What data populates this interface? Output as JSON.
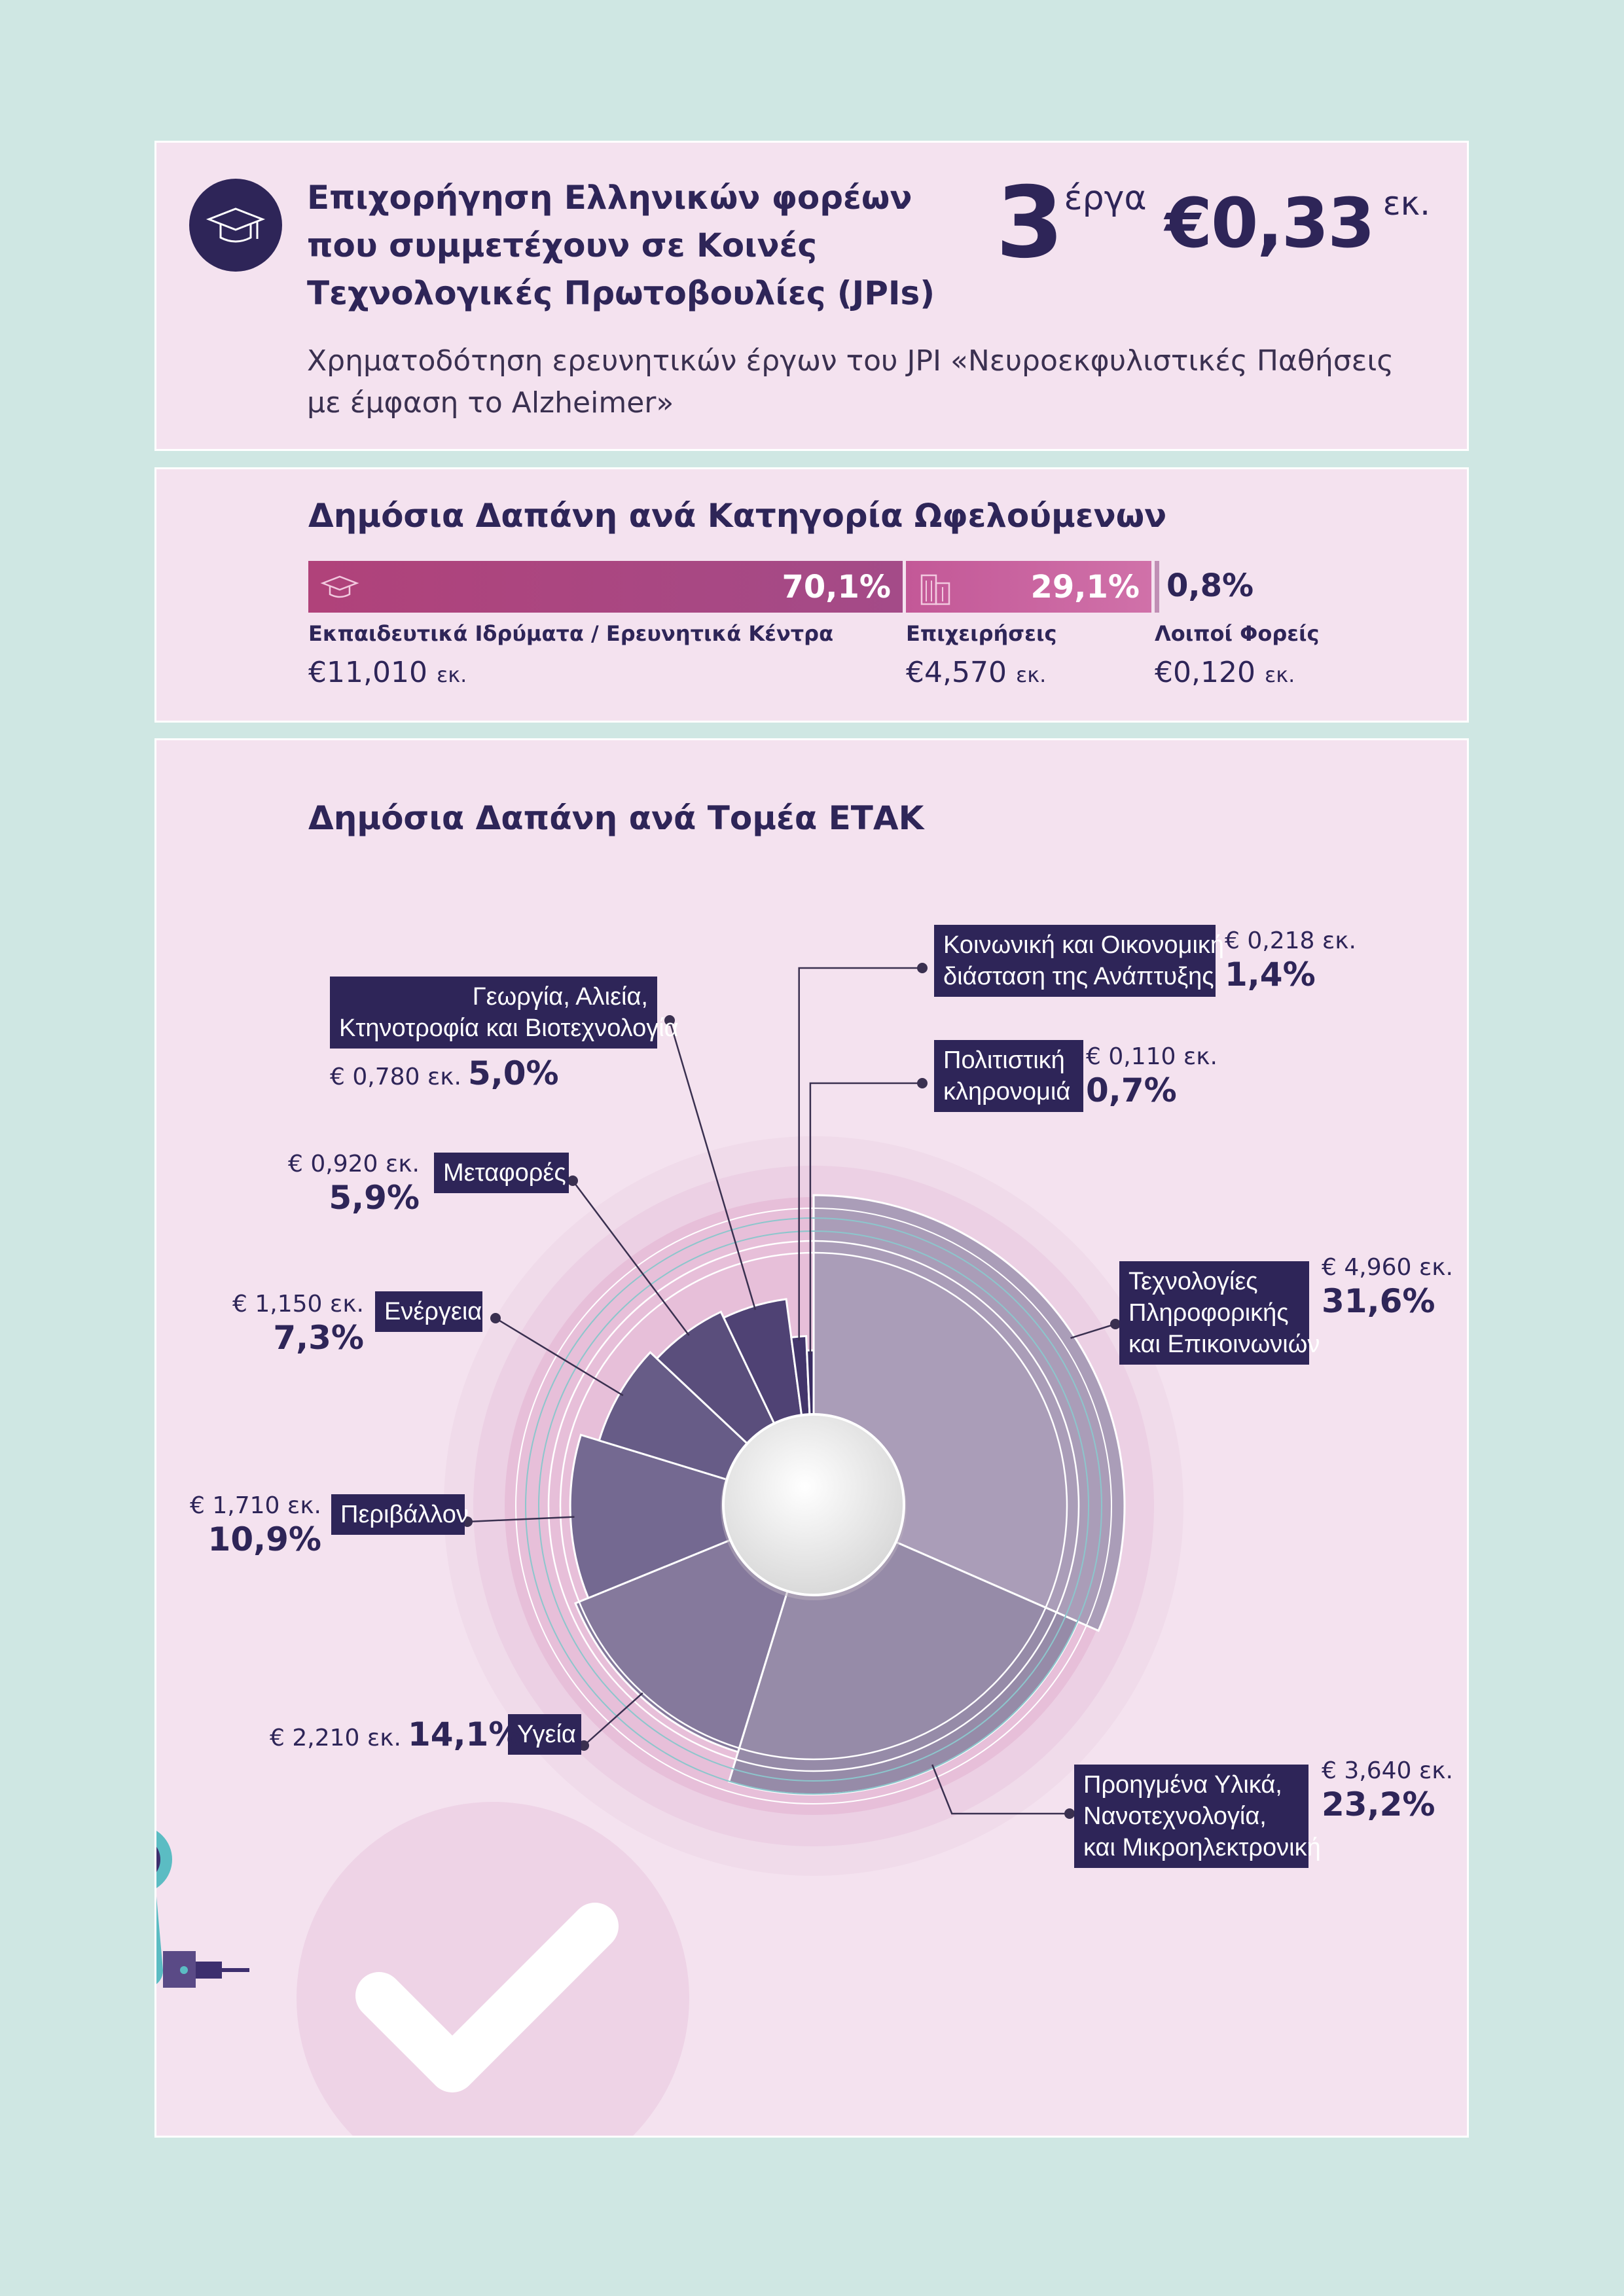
{
  "header": {
    "title_lines": [
      "Επιχορήγηση Ελληνικών φορέων",
      "που συμμετέχουν σε Κοινές",
      "Τεχνολογικές Πρωτοβουλίες (JPIs)"
    ],
    "projects_count": "3",
    "projects_label": "έργα",
    "amount": "€0,33",
    "amount_unit": "εκ.",
    "description_lines": [
      "Χρηματοδότηση ερευνητικών έργων του JPI «Νευροεκφυλιστικές Παθήσεις",
      "με έμφαση το Alzheimer»"
    ],
    "icon": "graduation-cap-icon"
  },
  "beneficiaries": {
    "title": "Δημόσια Δαπάνη ανά Κατηγορία Ωφελούμενων",
    "categories": [
      {
        "label": "Εκπαιδευτικά Ιδρύματα / Ερευνητικά Κέντρα",
        "pct": "70,1%",
        "share": 70.1,
        "value": "€11,010",
        "unit": "εκ.",
        "icon": "graduation-cap-icon",
        "color": "#a84685"
      },
      {
        "label": "Επιχειρήσεις",
        "pct": "29,1%",
        "share": 29.1,
        "value": "€4,570",
        "unit": "εκ.",
        "icon": "building-icon",
        "color": "#cb67a3"
      },
      {
        "label": "Λοιποί Φορείς",
        "pct": "0,8%",
        "share": 0.8,
        "value": "€0,120",
        "unit": "εκ.",
        "color": "#c08fb5"
      }
    ]
  },
  "sectors_title": "Δημόσια Δαπάνη ανά Τομέα ΕΤΑΚ",
  "chart_data": {
    "type": "pie",
    "variant": "polar-area",
    "categories": [
      "Τεχνολογίες Πληροφορικής και Επικοινωνιών",
      "Προηγμένα Υλικά, Νανοτεχνολογία, και Μικροηλεκτρονική",
      "Υγεία",
      "Περιβάλλον",
      "Ενέργεια",
      "Μεταφορές",
      "Γεωργία, Αλιεία, Κτηνοτροφία και Βιοτεχνολογία",
      "Κοινωνική και Οικονομική διάσταση της Ανάπτυξης",
      "Πολιτιστική κληρονομιά"
    ],
    "values": [
      31.6,
      23.2,
      14.1,
      10.9,
      7.3,
      5.9,
      5.0,
      1.4,
      0.7
    ],
    "colors": [
      "#aa9db8",
      "#968ba8",
      "#85799c",
      "#746991",
      "#675c87",
      "#5a4e7c",
      "#4f4274",
      "#43366b",
      "#3a2d63"
    ],
    "segments": [
      {
        "label_lines": [
          "Τεχνολογίες",
          "Πληροφορικής",
          "και Επικοινωνιών"
        ],
        "amount": "€ 4,960 εκ.",
        "pct": "31,6%"
      },
      {
        "label_lines": [
          "Προηγμένα Υλικά,",
          "Νανοτεχνολογία,",
          "και Μικροηλεκτρονική"
        ],
        "amount": "€ 3,640 εκ.",
        "pct": "23,2%"
      },
      {
        "label_lines": [
          "Υγεία"
        ],
        "amount": "€ 2,210 εκ.",
        "pct": "14,1%"
      },
      {
        "label_lines": [
          "Περιβάλλον"
        ],
        "amount": "€ 1,710 εκ.",
        "pct": "10,9%"
      },
      {
        "label_lines": [
          "Ενέργεια"
        ],
        "amount": "€ 1,150 εκ.",
        "pct": "7,3%"
      },
      {
        "label_lines": [
          "Μεταφορές"
        ],
        "amount": "€ 0,920 εκ.",
        "pct": "5,9%"
      },
      {
        "label_lines": [
          "Γεωργία, Αλιεία,",
          "Κτηνοτροφία και Βιοτεχνολογία"
        ],
        "amount": "€ 0,780 εκ.",
        "pct": "5,0%"
      },
      {
        "label_lines": [
          "Κοινωνική και Οικονομική",
          "διάσταση της Ανάπτυξης"
        ],
        "amount": "€ 0,218 εκ.",
        "pct": "1,4%"
      },
      {
        "label_lines": [
          "Πολιτιστική",
          "κληρονομιά"
        ],
        "amount": "€ 0,110 εκ.",
        "pct": "0,7%"
      }
    ]
  }
}
